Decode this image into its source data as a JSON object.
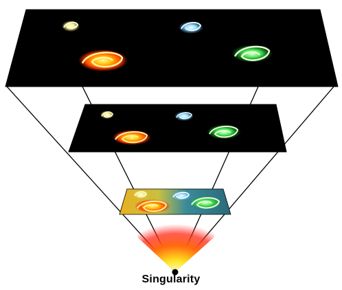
{
  "labels": {
    "singularity": "Singularity"
  },
  "colors": {
    "background": "#ffffff",
    "space": "#000000",
    "outline": "#000000",
    "galaxy_yellow": "#f4f08a",
    "galaxy_orange": "#ff8a00",
    "galaxy_blue": "#8fd8ff",
    "galaxy_green": "#3fe24a"
  }
}
